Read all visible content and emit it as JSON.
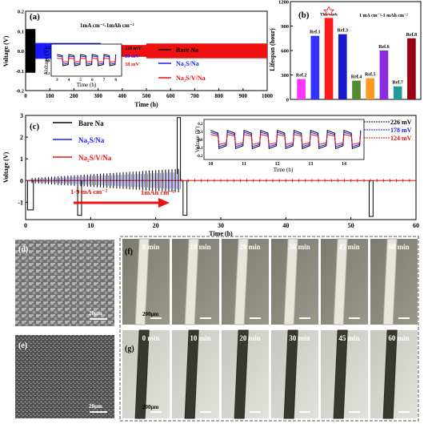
{
  "chart_data": [
    {
      "panel": "(a)",
      "type": "line",
      "annotation": "1mA cm⁻²-1mAh cm⁻²",
      "xlabel": "Time (h)",
      "ylabel": "Voltage (V)",
      "xlim": [
        0,
        1000
      ],
      "ylim": [
        -0.2,
        0.2
      ],
      "xticks": [
        0,
        100,
        200,
        300,
        400,
        500,
        600,
        700,
        800,
        900,
        1000
      ],
      "yticks": [
        -0.2,
        -0.1,
        0.0,
        0.1,
        0.2
      ],
      "legend": [
        "Bare Na",
        "Na₂S/Na",
        "Na₂S/V/Na"
      ],
      "legend_position": "right",
      "series": [
        {
          "name": "Bare Na",
          "color": "#000000",
          "x_end": 40,
          "amplitude": 0.11
        },
        {
          "name": "Na₂S/Na",
          "color": "#1a1aff",
          "x_end": 310,
          "amplitude": 0.04
        },
        {
          "name": "Na₂S/V/Na",
          "color": "#ee1111",
          "x_end": 1000,
          "amplitude": 0.03
        }
      ],
      "inset": {
        "xlabel": "Time (h)",
        "ylabel": "Voltage (V)",
        "xticks": [
          3,
          4,
          5,
          6,
          7,
          8
        ],
        "yticks": [
          -0.2,
          0.0,
          0.2
        ],
        "overpotentials": [
          "110 mV",
          "80 mV",
          "38 mV"
        ]
      }
    },
    {
      "panel": "(b)",
      "type": "bar",
      "annotation": "1 mA cm⁻²-1 mAh cm⁻²",
      "ylabel": "Lifespan (hour)",
      "ylim": [
        0,
        1200
      ],
      "yticks": [
        0,
        300,
        600,
        900,
        1200
      ],
      "categories": [
        "Ref.2",
        "Ref.1",
        "This work",
        "Ref.3",
        "Ref.4",
        "Ref.5",
        "Ref.6",
        "Ref.7",
        "Ref.8"
      ],
      "values": [
        250,
        780,
        1000,
        800,
        230,
        260,
        600,
        160,
        750
      ],
      "colors": [
        "#ff33ff",
        "#3333ff",
        "#ff1a1a",
        "#1a1acc",
        "#558833",
        "#ff9922",
        "#8a2be2",
        "#229999",
        "#990011"
      ]
    },
    {
      "panel": "(c)",
      "type": "line",
      "xlabel": "Time (h)",
      "ylabel": "Voltage (V)",
      "xlim": [
        0,
        60
      ],
      "ylim": [
        -1.8,
        3.0
      ],
      "xticks": [
        0,
        10,
        20,
        30,
        40,
        50,
        60
      ],
      "yticks": [
        -1,
        0,
        1,
        2,
        3
      ],
      "legend": [
        "Bare Na",
        "Na₂S/Na",
        "Na₂S/V/Na"
      ],
      "legend_position": "top-left",
      "annotations": [
        "1-9 mA cm⁻²",
        "1mAh cm⁻²"
      ],
      "inset": {
        "xlabel": "Time (h)",
        "ylabel": "Voltage (V)",
        "xticks": [
          10,
          11,
          12,
          13,
          14
        ],
        "yticks": [
          -0.2,
          -0.1,
          0.0,
          0.1,
          0.2
        ],
        "overpotentials": [
          "226 mV",
          "178 mV",
          "124 mV"
        ]
      }
    }
  ],
  "panels": {
    "d": {
      "label": "(d)",
      "scale": "20μm"
    },
    "e": {
      "label": "(e)",
      "scale": "20μm"
    },
    "f": {
      "label": "(f)",
      "times": [
        "0 min",
        "10 min",
        "20 min",
        "30 min",
        "45 min",
        "60 min"
      ],
      "scale": "200μm"
    },
    "g": {
      "label": "(g)",
      "times": [
        "0 min",
        "10 min",
        "20 min",
        "30 min",
        "45 min",
        "60 min"
      ],
      "scale": "200μm"
    }
  },
  "colors": {
    "bare": "#000000",
    "na2s": "#1a1aff",
    "na2sv": "#ee1111"
  }
}
